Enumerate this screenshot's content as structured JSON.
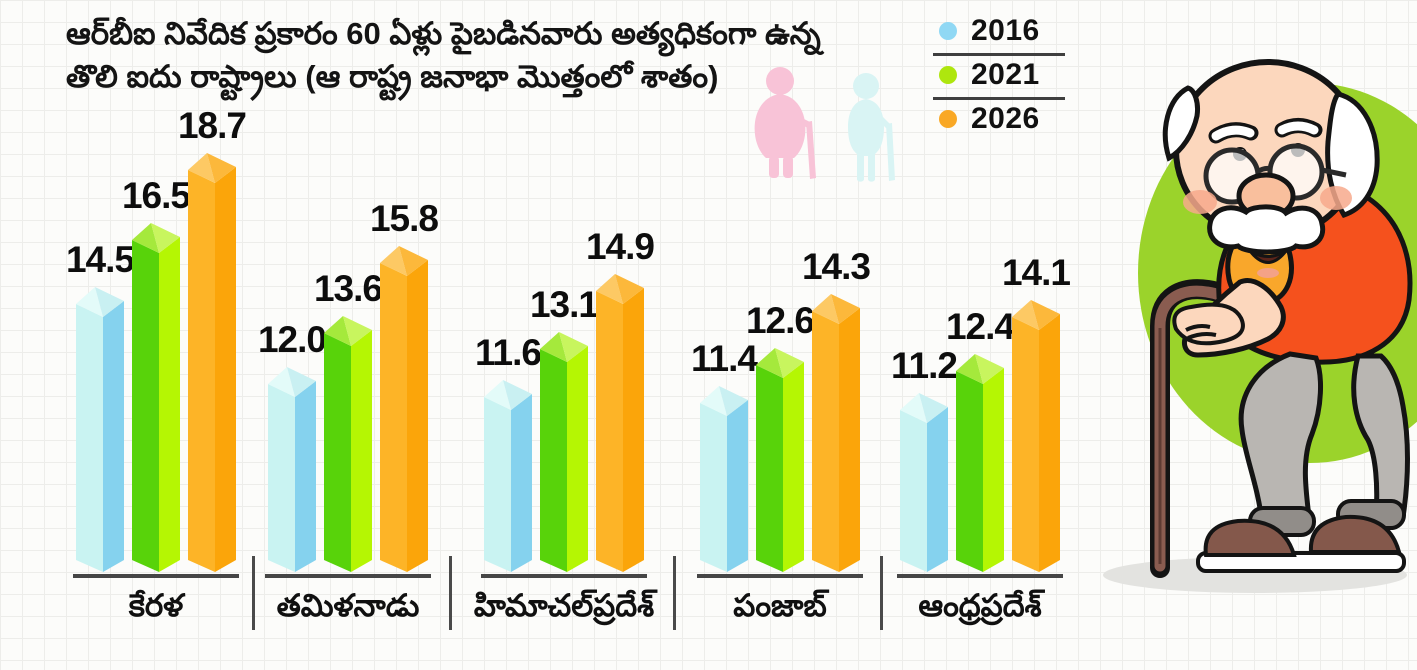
{
  "title": {
    "line1": "ఆర్‌బీఐ నివేదిక ప్రకారం 60 ఏళ్లు పైబడినవారు అత్యధికంగా ఉన్న",
    "line2": "తొలి ఐదు రాష్ట్రాలు (ఆ రాష్ట్ర జనాభా మొత్తంలో శాతం)"
  },
  "legend": {
    "items": [
      {
        "label": "2016",
        "color": "#90d8f4"
      },
      {
        "label": "2021",
        "color": "#aee60e"
      },
      {
        "label": "2026",
        "color": "#f9a825"
      }
    ]
  },
  "chart_data": {
    "type": "bar",
    "title": "ఆర్‌బీఐ నివేదిక ప్రకారం 60 ఏళ్లు పైబడినవారు అత్యధికంగా ఉన్న తొలి ఐదు రాష్ట్రాలు (ఆ రాష్ట్ర జనాభా మొత్తంలో శాతం)",
    "categories": [
      "కేరళ",
      "తమిళనాడు",
      "హిమాచల్‌ప్రదేశ్",
      "పంజాబ్",
      "ఆంధ్రప్రదేశ్"
    ],
    "series": [
      {
        "name": "2016",
        "values": [
          14.5,
          12.0,
          11.6,
          11.4,
          11.2
        ],
        "colors": {
          "front": "#c9f3f2",
          "side": "#85d2ee",
          "topLeft": "#e3fbf9",
          "topRight": "#c9f0f2"
        }
      },
      {
        "name": "2021",
        "values": [
          16.5,
          13.6,
          13.1,
          12.6,
          12.4
        ],
        "colors": {
          "front": "#58d30a",
          "side": "#b5f603",
          "topLeft": "#a5e93c",
          "topRight": "#c8f55e"
        }
      },
      {
        "name": "2026",
        "values": [
          18.7,
          15.8,
          14.9,
          14.3,
          14.1
        ],
        "colors": {
          "front": "#fdb427",
          "side": "#fba50a",
          "topLeft": "#fdc964",
          "topRight": "#fcb83b"
        }
      }
    ],
    "value_labels": true,
    "value_decimals": 1,
    "bar_style": "3d",
    "xlabel": "",
    "ylabel": "",
    "ylim": [
      0,
      20
    ],
    "grid": false,
    "legend_position": "top-right"
  },
  "illustrations": {
    "elderly_couple": {
      "woman_color": "#f8c3d7",
      "man_color": "#d9f4f4"
    },
    "old_man": {
      "blob_color": "#9bd32b",
      "skin_color": "#fcd7bd",
      "shirt_color": "#f5511d",
      "sleeve_color": "#f9a72b",
      "pants_color": "#b9b6b2",
      "cuff_color": "#918d89",
      "shoe_color": "#84584b",
      "cane_color": "#8a5c50",
      "hair_color": "#ffffff"
    }
  }
}
